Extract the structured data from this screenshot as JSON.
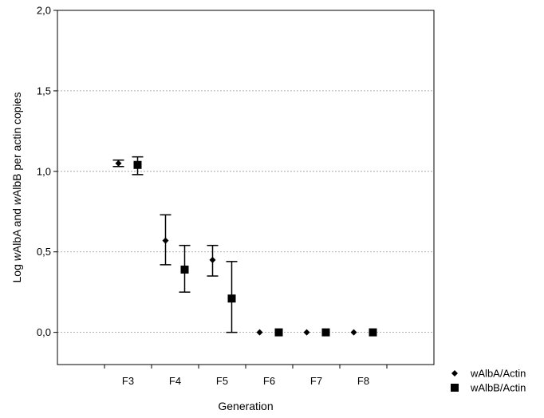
{
  "chart_data": {
    "type": "scatter",
    "xlabel": "Generation",
    "ylabel_parts": [
      {
        "text": "Log ",
        "italic": false
      },
      {
        "text": "w",
        "italic": true
      },
      {
        "text": "AlbA and ",
        "italic": false
      },
      {
        "text": "w",
        "italic": true
      },
      {
        "text": "AlbB per actin copies",
        "italic": false
      }
    ],
    "categories": [
      "F3",
      "F4",
      "F5",
      "F6",
      "F7",
      "F8"
    ],
    "ylim": [
      -0.2,
      2.0
    ],
    "yticks": [
      "0,0",
      "0,5",
      "1,0",
      "1,5",
      "2,0"
    ],
    "ytick_values": [
      0.0,
      0.5,
      1.0,
      1.5,
      2.0
    ],
    "grid": "horizontal dashed",
    "legend_position": "bottom-right",
    "series": [
      {
        "name": "wAlbA/Actin",
        "marker": "diamond",
        "color": "#000000",
        "values": [
          1.05,
          0.57,
          0.45,
          0.0,
          0.0,
          0.0
        ],
        "err_low": [
          1.03,
          0.42,
          0.35,
          null,
          null,
          null
        ],
        "err_high": [
          1.07,
          0.73,
          0.54,
          null,
          null,
          null
        ]
      },
      {
        "name": "wAlbB/Actin",
        "marker": "square",
        "color": "#000000",
        "values": [
          1.04,
          0.39,
          0.21,
          0.0,
          0.0,
          0.0
        ],
        "err_low": [
          0.98,
          0.25,
          0.0,
          null,
          null,
          null
        ],
        "err_high": [
          1.09,
          0.54,
          0.44,
          null,
          null,
          null
        ]
      }
    ]
  }
}
